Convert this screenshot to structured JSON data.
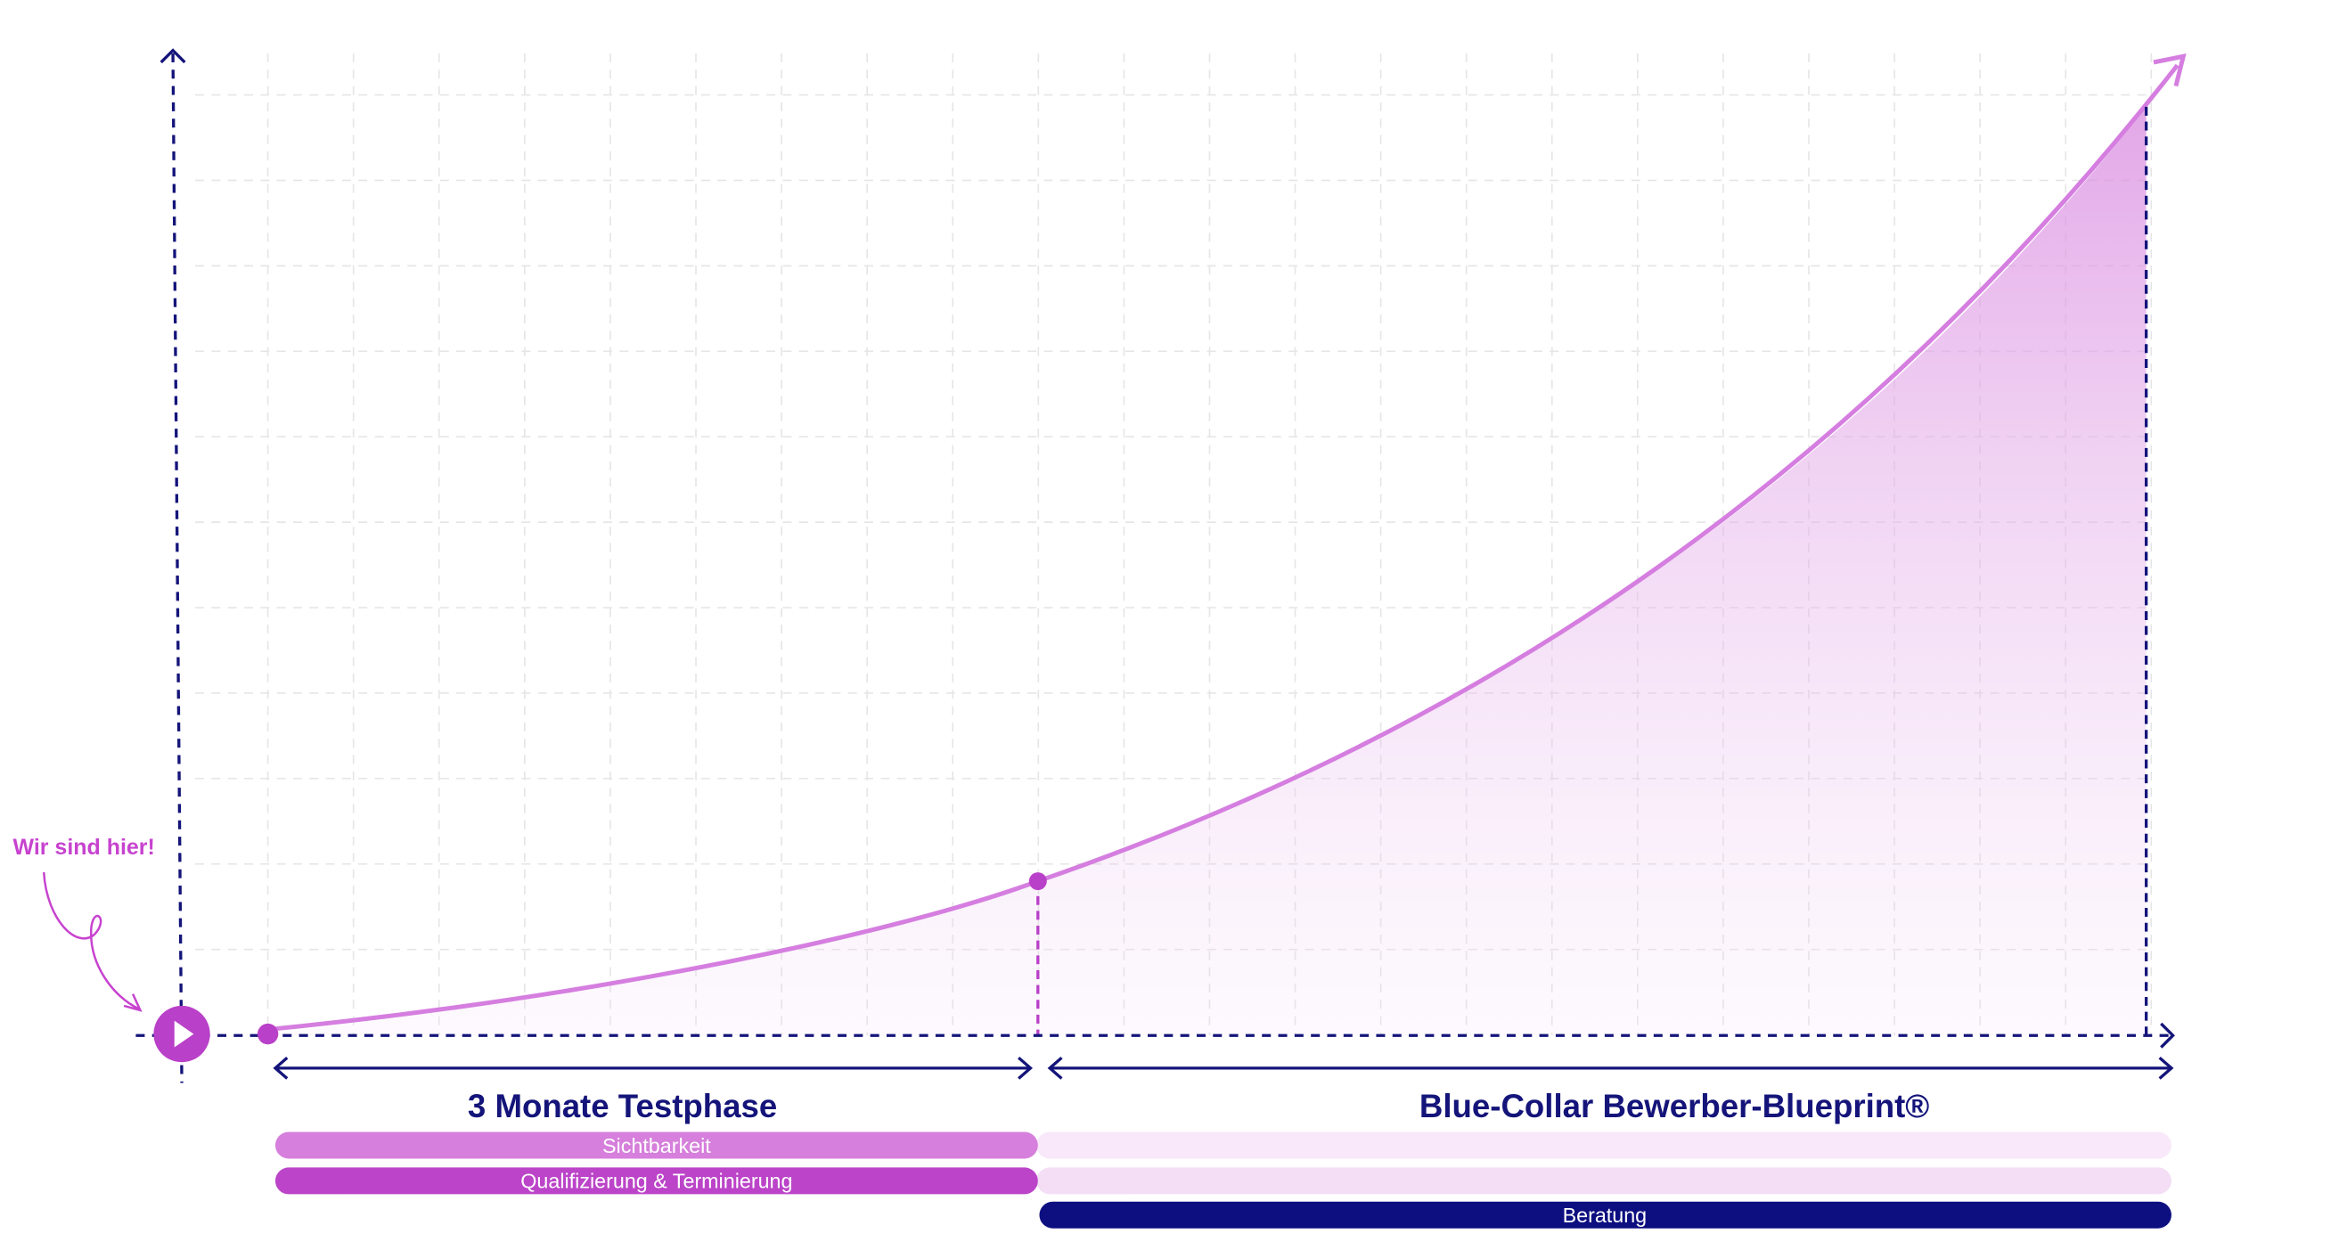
{
  "annotation": "Wir sind hier!",
  "phases": [
    {
      "label": "3 Monate Testphase"
    },
    {
      "label": "Blue-Collar Bewerber-Blueprint®"
    }
  ],
  "bars": [
    {
      "label": "Sichtbarkeit"
    },
    {
      "label": "Qualifizierung & Terminierung"
    },
    {
      "label": "Beratung"
    }
  ]
}
